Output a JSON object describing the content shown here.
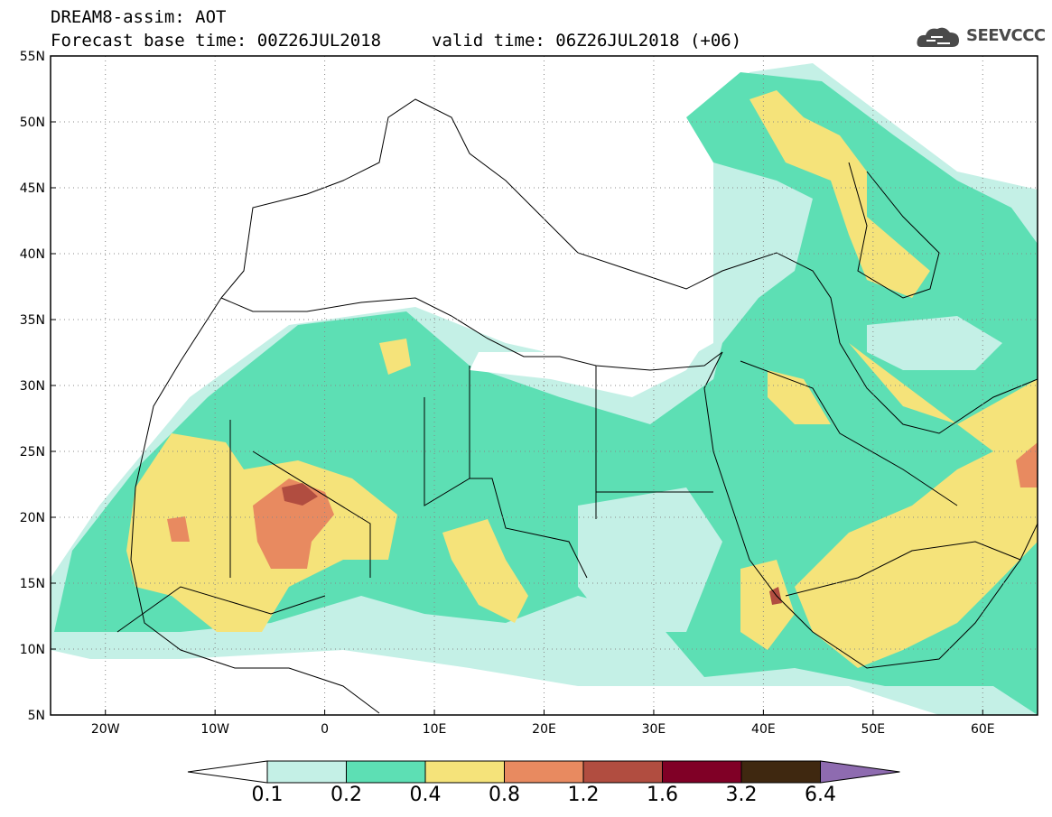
{
  "header": {
    "line1": "DREAM8-assim: AOT",
    "line2": "Forecast base time: 00Z26JUL2018",
    "line3": "valid time: 06Z26JUL2018 (+06)"
  },
  "logo": {
    "text": "SEEVCCC",
    "icon": "cloud-icon"
  },
  "map": {
    "lat_labels": [
      "55N",
      "50N",
      "45N",
      "40N",
      "35N",
      "30N",
      "25N",
      "20N",
      "15N",
      "10N",
      "5N"
    ],
    "lon_labels": [
      "20W",
      "10W",
      "0",
      "10E",
      "20E",
      "30E",
      "40E",
      "50E",
      "60E"
    ],
    "lon_range": [
      -25,
      65
    ],
    "lat_range": [
      5,
      55
    ],
    "grid": "dotted"
  },
  "colorbar": {
    "levels": [
      "0.1",
      "0.2",
      "0.4",
      "0.8",
      "1.2",
      "1.6",
      "3.2",
      "6.4"
    ],
    "colors": [
      "#c4f0e6",
      "#5ddfb4",
      "#f5e37a",
      "#e88a60",
      "#b14d40",
      "#800026",
      "#3f2810",
      "#8e6bb0"
    ]
  }
}
